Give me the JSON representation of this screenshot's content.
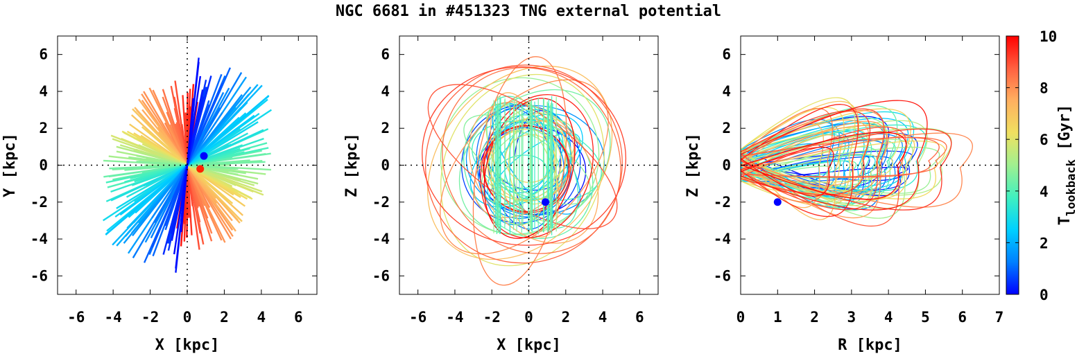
{
  "figure": {
    "title": "NGC 6681 in #451323 TNG external potential",
    "colorbar": {
      "label_main": "T",
      "label_sub": "lookback",
      "label_unit": " [Gyr]",
      "range": [
        0,
        10
      ],
      "ticks": [
        "0",
        "2",
        "4",
        "6",
        "8",
        "10"
      ],
      "colormap": [
        "#0000ff",
        "#0080ff",
        "#00d0ff",
        "#40f0c0",
        "#a0f090",
        "#f0e060",
        "#ffb060",
        "#ff6040",
        "#ff0000"
      ]
    }
  },
  "chart_data": [
    {
      "type": "scatter",
      "panel": "x-y",
      "xlabel": "X [kpc]",
      "ylabel": "Y [kpc]",
      "xlim": [
        -7,
        7
      ],
      "ylim": [
        -7,
        7
      ],
      "xticks": [
        "-6",
        "-4",
        "-2",
        "0",
        "2",
        "4",
        "6"
      ],
      "yticks": [
        "-6",
        "-4",
        "-2",
        "0",
        "2",
        "4",
        "6"
      ],
      "grid": "zero-lines dotted",
      "current_point": {
        "x": 0.9,
        "y": 0.5,
        "color": "#0000ff"
      },
      "start_point": {
        "x": 0.7,
        "y": -0.2,
        "color": "#ff2200"
      }
    },
    {
      "type": "scatter",
      "panel": "x-z",
      "xlabel": "X [kpc]",
      "ylabel": "Z [kpc]",
      "xlim": [
        -7,
        7
      ],
      "ylim": [
        -7,
        7
      ],
      "xticks": [
        "-6",
        "-4",
        "-2",
        "0",
        "2",
        "4",
        "6"
      ],
      "yticks": [
        "-6",
        "-4",
        "-2",
        "0",
        "2",
        "4",
        "6"
      ],
      "grid": "zero-lines dotted",
      "current_point": {
        "x": 0.9,
        "y": -2.0,
        "color": "#0000ff"
      }
    },
    {
      "type": "scatter",
      "panel": "r-z",
      "xlabel": "R [kpc]",
      "ylabel": "Z [kpc]",
      "xlim": [
        0,
        7
      ],
      "ylim": [
        -7,
        7
      ],
      "xticks": [
        "0",
        "1",
        "2",
        "3",
        "4",
        "5",
        "6",
        "7"
      ],
      "yticks": [
        "-6",
        "-4",
        "-2",
        "0",
        "2",
        "4",
        "6"
      ],
      "grid": "zero-lines dotted",
      "current_point": {
        "x": 1.0,
        "y": -2.0,
        "color": "#0000ff"
      }
    }
  ]
}
